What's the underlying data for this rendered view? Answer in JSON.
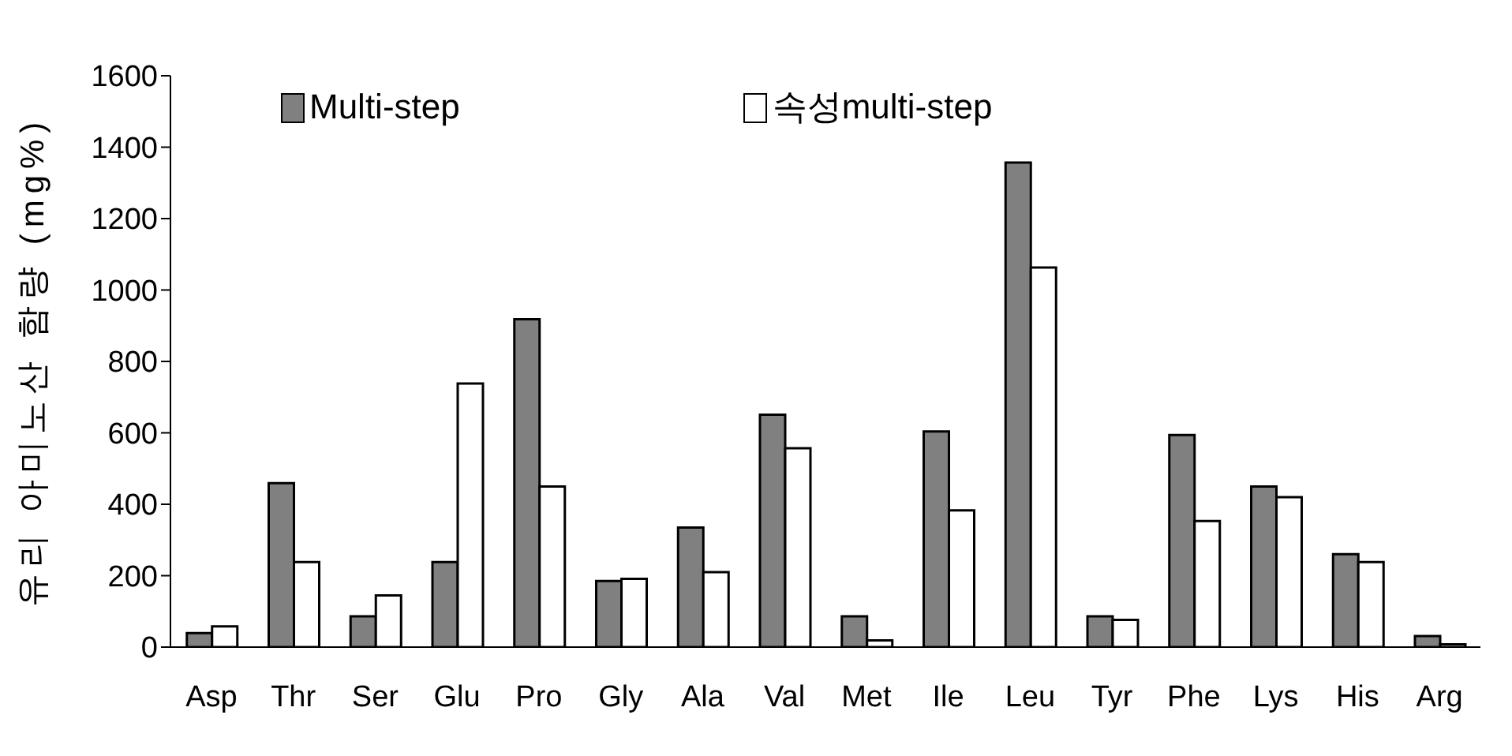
{
  "chart_data": {
    "type": "bar",
    "ylabel": "유리 아미노산 함량 (mg%)",
    "categories": [
      "Asp",
      "Thr",
      "Ser",
      "Glu",
      "Pro",
      "Gly",
      "Ala",
      "Val",
      "Met",
      "Ile",
      "Leu",
      "Tyr",
      "Phe",
      "Lys",
      "His",
      "Arg"
    ],
    "series": [
      {
        "name": "Multi-step",
        "color": "#808080",
        "values": [
          39,
          459,
          86,
          238,
          918,
          185,
          335,
          651,
          86,
          604,
          1357,
          86,
          594,
          450,
          260,
          31
        ]
      },
      {
        "name": "속성multi-step",
        "color": "#ffffff",
        "values": [
          58,
          238,
          145,
          738,
          450,
          191,
          210,
          557,
          19,
          383,
          1063,
          76,
          353,
          420,
          238,
          8
        ]
      }
    ],
    "ylim": [
      0,
      1600
    ],
    "yticks": [
      0,
      200,
      400,
      600,
      800,
      1000,
      1200,
      1400,
      1600
    ],
    "grid": false,
    "legend": "top left"
  }
}
